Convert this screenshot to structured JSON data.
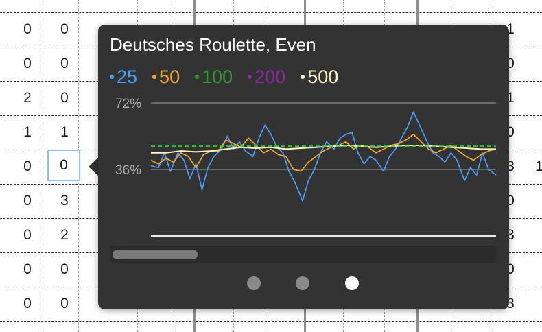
{
  "grid": {
    "rows": [
      {
        "cells": [
          "0",
          "0"
        ]
      },
      {
        "cells": [
          "0",
          "0"
        ]
      },
      {
        "cells": [
          "2",
          "0"
        ]
      },
      {
        "cells": [
          "1",
          "1"
        ]
      },
      {
        "cells": [
          "0",
          "0"
        ]
      },
      {
        "cells": [
          "0",
          "3"
        ]
      },
      {
        "cells": [
          "0",
          "2"
        ]
      },
      {
        "cells": [
          "0",
          "0"
        ]
      },
      {
        "cells": [
          "0",
          "0"
        ]
      }
    ],
    "right_edge": [
      "1",
      "0",
      "1",
      "0",
      "3",
      "0",
      "3",
      "0",
      "3"
    ],
    "far_right": "1"
  },
  "popover": {
    "title": "Deutsches Roulette, Even",
    "legend": [
      {
        "label": "25",
        "color": "#4a9eff"
      },
      {
        "label": "50",
        "color": "#f0a830"
      },
      {
        "label": "100",
        "color": "#2e9a2e"
      },
      {
        "label": "200",
        "color": "#8a2a9e"
      },
      {
        "label": "500",
        "color": "#fff3c4"
      }
    ],
    "pages": {
      "count": 3,
      "active": 2
    }
  },
  "chart_data": {
    "type": "line",
    "yticks": [
      "72%",
      "36%"
    ],
    "ylim": [
      0,
      72
    ],
    "xlim": [
      0,
      230
    ],
    "grid": true,
    "reference_line": {
      "value": 48.6,
      "color": "#35d435",
      "style": "dashed"
    },
    "series": [
      {
        "name": "25",
        "color": "#4a9eff",
        "points": [
          [
            0,
            38
          ],
          [
            5,
            37
          ],
          [
            9,
            45
          ],
          [
            13,
            35
          ],
          [
            18,
            45
          ],
          [
            22,
            41
          ],
          [
            26,
            31
          ],
          [
            30,
            39
          ],
          [
            34,
            25
          ],
          [
            38,
            37
          ],
          [
            42,
            43
          ],
          [
            47,
            47
          ],
          [
            51,
            54
          ],
          [
            55,
            47
          ],
          [
            59,
            51
          ],
          [
            63,
            46
          ],
          [
            68,
            43
          ],
          [
            72,
            53
          ],
          [
            76,
            60
          ],
          [
            80,
            55
          ],
          [
            84,
            48
          ],
          [
            88,
            45
          ],
          [
            92,
            35
          ],
          [
            96,
            29
          ],
          [
            101,
            19
          ],
          [
            105,
            30
          ],
          [
            109,
            36
          ],
          [
            113,
            45
          ],
          [
            117,
            51
          ],
          [
            122,
            47
          ],
          [
            126,
            53
          ],
          [
            130,
            55
          ],
          [
            134,
            56
          ],
          [
            138,
            45
          ],
          [
            142,
            39
          ],
          [
            146,
            43
          ],
          [
            150,
            41
          ],
          [
            155,
            35
          ],
          [
            159,
            43
          ],
          [
            163,
            47
          ],
          [
            167,
            53
          ],
          [
            171,
            59
          ],
          [
            175,
            67
          ],
          [
            179,
            60
          ],
          [
            184,
            51
          ],
          [
            188,
            45
          ],
          [
            192,
            43
          ],
          [
            196,
            40
          ],
          [
            200,
            45
          ],
          [
            204,
            41
          ],
          [
            209,
            30
          ],
          [
            213,
            37
          ],
          [
            217,
            33
          ],
          [
            221,
            45
          ],
          [
            225,
            36
          ],
          [
            230,
            33
          ]
        ]
      },
      {
        "name": "50",
        "color": "#f0a830",
        "points": [
          [
            0,
            41
          ],
          [
            5,
            39
          ],
          [
            10,
            42
          ],
          [
            15,
            40
          ],
          [
            20,
            45
          ],
          [
            25,
            43
          ],
          [
            30,
            37
          ],
          [
            35,
            44
          ],
          [
            40,
            46
          ],
          [
            45,
            46
          ],
          [
            50,
            52
          ],
          [
            55,
            50
          ],
          [
            60,
            48
          ],
          [
            65,
            53
          ],
          [
            70,
            49
          ],
          [
            75,
            45
          ],
          [
            80,
            47
          ],
          [
            85,
            44
          ],
          [
            90,
            43
          ],
          [
            95,
            36
          ],
          [
            100,
            35
          ],
          [
            105,
            40
          ],
          [
            110,
            43
          ],
          [
            115,
            46
          ],
          [
            120,
            48
          ],
          [
            125,
            49
          ],
          [
            130,
            51
          ],
          [
            135,
            47
          ],
          [
            140,
            49
          ],
          [
            145,
            48
          ],
          [
            150,
            45
          ],
          [
            155,
            47
          ],
          [
            160,
            49
          ],
          [
            165,
            50
          ],
          [
            170,
            52
          ],
          [
            175,
            55
          ],
          [
            180,
            51
          ],
          [
            185,
            47
          ],
          [
            190,
            45
          ],
          [
            195,
            47
          ],
          [
            200,
            49
          ],
          [
            205,
            46
          ],
          [
            210,
            43
          ],
          [
            215,
            41
          ],
          [
            220,
            44
          ],
          [
            225,
            46
          ],
          [
            230,
            47
          ]
        ]
      },
      {
        "name": "500",
        "color": "#fff3c4",
        "points": [
          [
            0,
            45
          ],
          [
            10,
            45
          ],
          [
            20,
            46
          ],
          [
            30,
            45.5
          ],
          [
            40,
            46
          ],
          [
            50,
            47
          ],
          [
            60,
            48
          ],
          [
            70,
            47.5
          ],
          [
            80,
            48
          ],
          [
            90,
            47
          ],
          [
            100,
            47.5
          ],
          [
            110,
            48
          ],
          [
            120,
            48.5
          ],
          [
            130,
            49
          ],
          [
            140,
            48.5
          ],
          [
            150,
            48
          ],
          [
            160,
            48.5
          ],
          [
            170,
            49
          ],
          [
            180,
            49
          ],
          [
            190,
            48.5
          ],
          [
            200,
            48
          ],
          [
            210,
            47.5
          ],
          [
            220,
            47
          ],
          [
            230,
            47
          ]
        ]
      }
    ]
  }
}
